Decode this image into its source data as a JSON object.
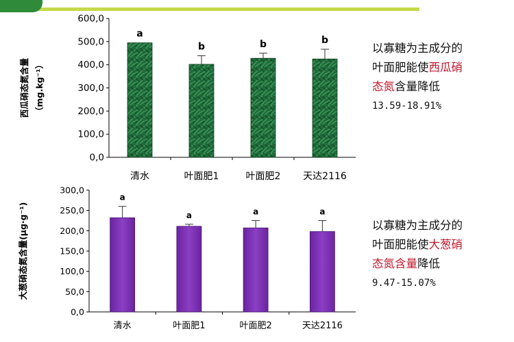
{
  "logo": {
    "text": ""
  },
  "chart_data": [
    {
      "type": "bar",
      "title": "",
      "ylabel": "西瓜硝态氮含量 （mg.kg⁻¹）",
      "categories": [
        "清水",
        "叶面肥1",
        "叶面肥2",
        "天达2116"
      ],
      "values": [
        495,
        402,
        428,
        425
      ],
      "errors": [
        0,
        37,
        22,
        42
      ],
      "significance": [
        "a",
        "b",
        "b",
        "b"
      ],
      "ylim": [
        0,
        600
      ],
      "yticks": [
        "0,0",
        "100,0",
        "200,0",
        "300,0",
        "400,0",
        "500,0",
        "600,0"
      ],
      "ytick_values": [
        0,
        100,
        200,
        300,
        400,
        500,
        600
      ],
      "bar_color": "#1f6a3a",
      "grid": false
    },
    {
      "type": "bar",
      "title": "",
      "ylabel": "大葱硝态氮含量(μg·g⁻¹)",
      "categories": [
        "清水",
        "叶面肥1",
        "叶面肥2",
        "天达2116"
      ],
      "values": [
        232,
        211,
        207,
        198
      ],
      "errors": [
        28,
        5,
        18,
        27
      ],
      "significance": [
        "a",
        "a",
        "a",
        "a"
      ],
      "ylim": [
        0,
        300
      ],
      "yticks": [
        "0,0",
        "50,0",
        "100,0",
        "150,0",
        "200,0",
        "250,0",
        "300,0"
      ],
      "ytick_values": [
        0,
        50,
        100,
        150,
        200,
        250,
        300
      ],
      "bar_color": "#7a2fb0",
      "grid": false
    }
  ],
  "captions": [
    {
      "line1": "以寡糖为主成分的",
      "line2_pre": "叶面肥能使",
      "line2_hl": "西瓜硝",
      "line3_hl": "态氮",
      "line3_post": "含量降低",
      "line4": "13.59-18.91%"
    },
    {
      "line1": "以寡糖为主成分的",
      "line2_pre": "叶面肥能使",
      "line2_hl": "大葱硝",
      "line3_hl": "态氮含量",
      "line3_post": "降低",
      "line4": "9.47-15.07%"
    }
  ]
}
